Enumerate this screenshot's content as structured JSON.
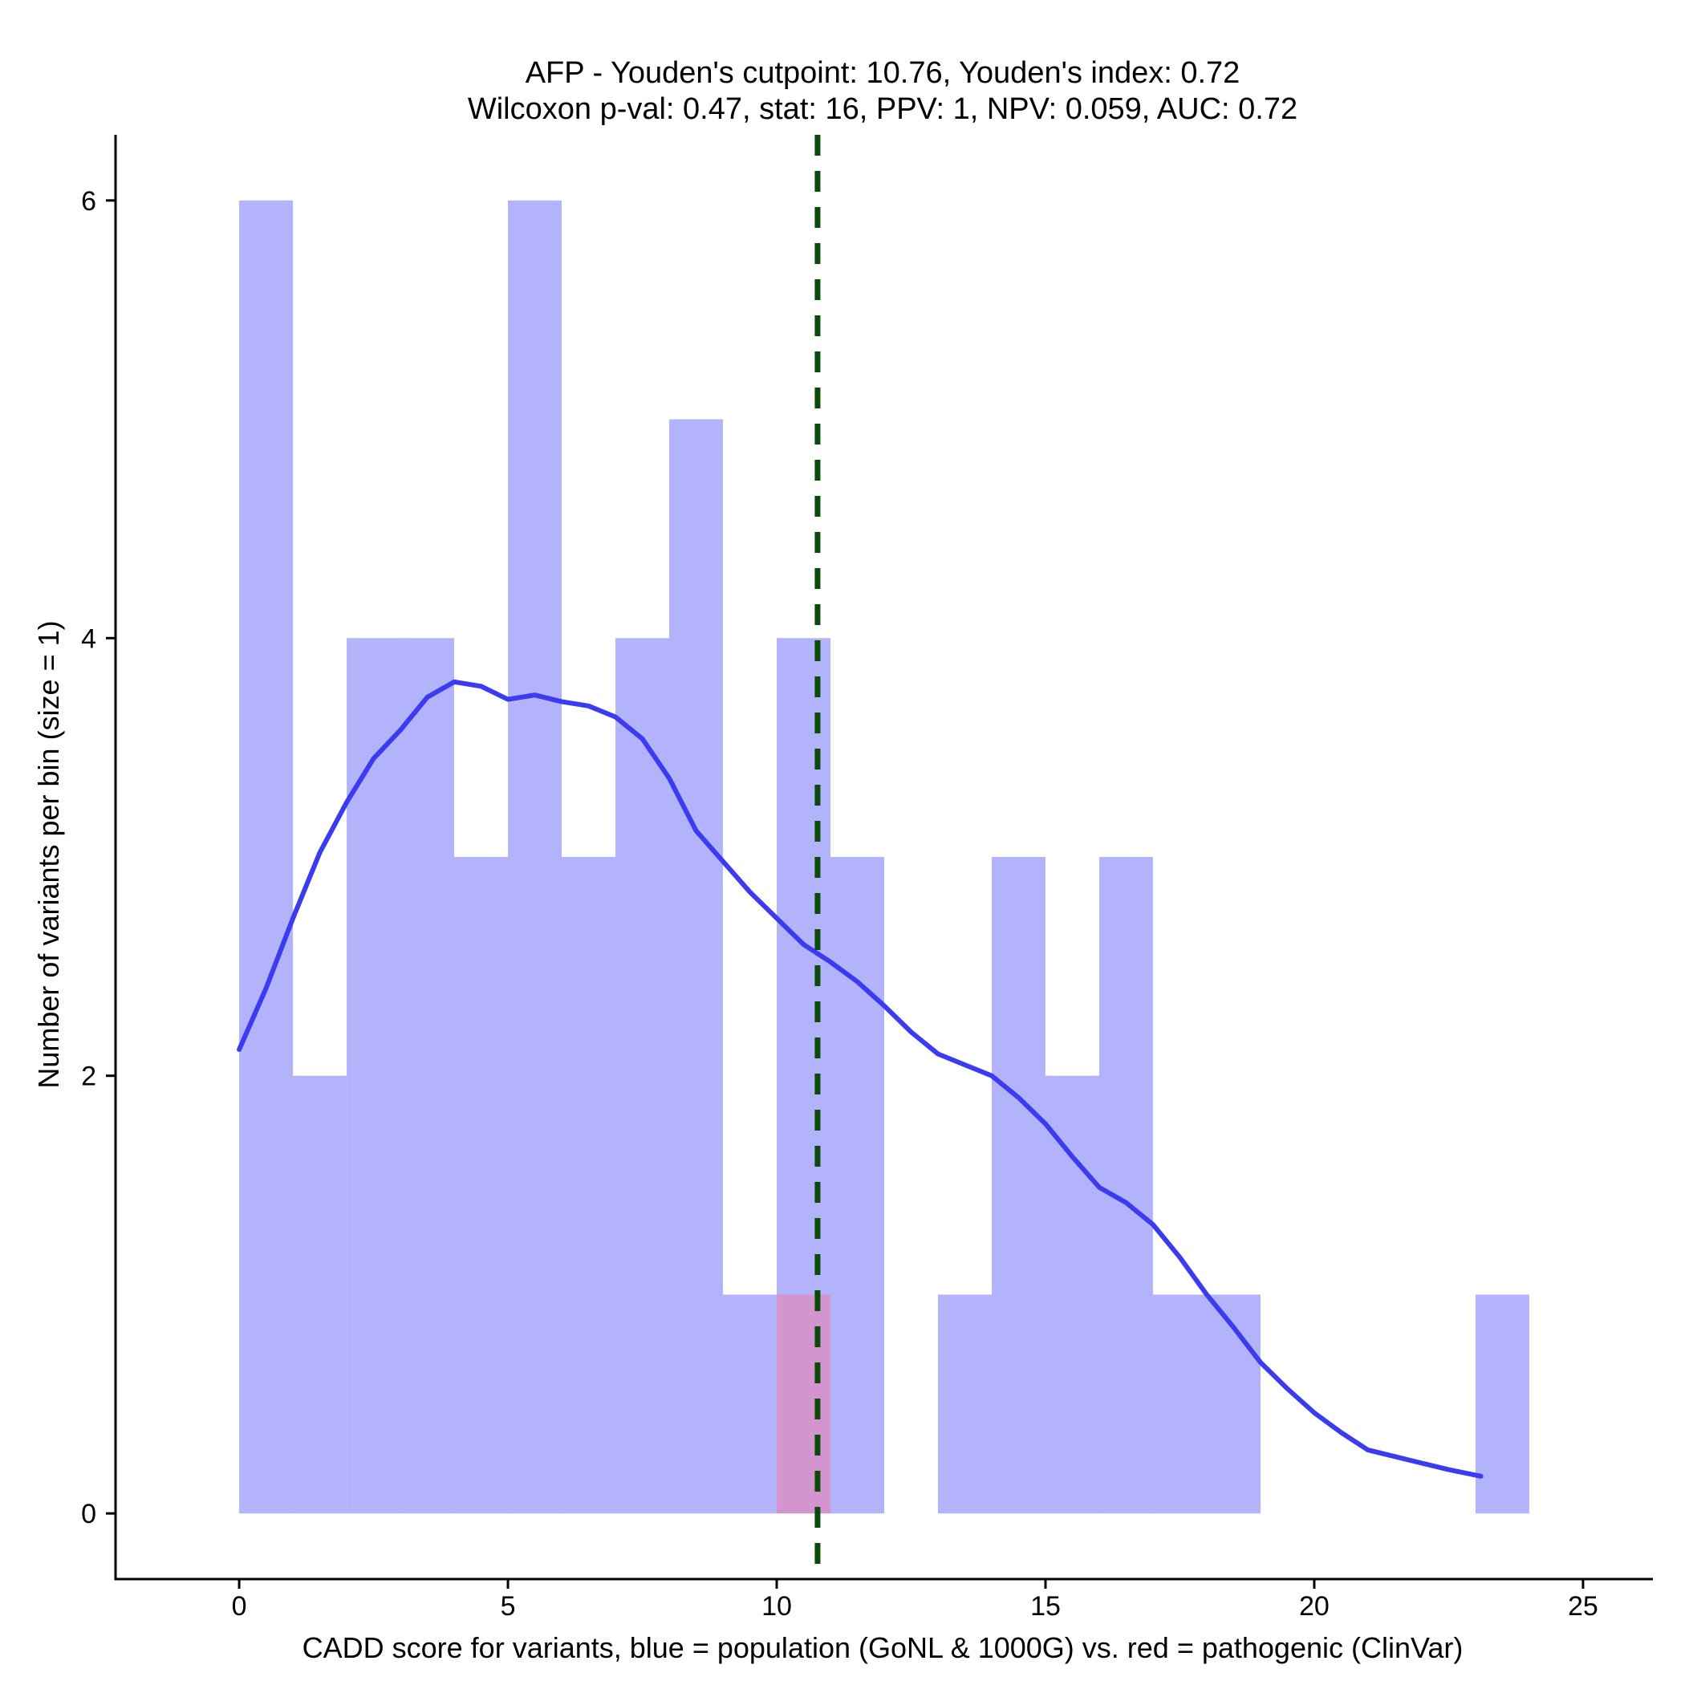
{
  "chart_data": {
    "type": "bar",
    "title_line1": "AFP - Youden's cutpoint: 10.76, Youden's index: 0.72",
    "title_line2": "Wilcoxon p-val: 0.47, stat: 16, PPV: 1, NPV: 0.059, AUC: 0.72",
    "xlabel": "CADD score for variants, blue = population (GoNL & 1000G) vs. red = pathogenic (ClinVar)",
    "ylabel": "Number of variants per bin (size = 1)",
    "xlim": [
      -2.3,
      26.3
    ],
    "ylim": [
      -0.3,
      6.3
    ],
    "x_ticks": [
      0,
      5,
      10,
      15,
      20,
      25
    ],
    "y_ticks": [
      0,
      2,
      4,
      6
    ],
    "bin_width": 1,
    "series": [
      {
        "name": "population",
        "color": "#b3b3fb",
        "bins": [
          {
            "start": 0,
            "count": 6
          },
          {
            "start": 1,
            "count": 2
          },
          {
            "start": 2,
            "count": 4
          },
          {
            "start": 3,
            "count": 4
          },
          {
            "start": 4,
            "count": 3
          },
          {
            "start": 5,
            "count": 6
          },
          {
            "start": 6,
            "count": 3
          },
          {
            "start": 7,
            "count": 4
          },
          {
            "start": 8,
            "count": 5
          },
          {
            "start": 9,
            "count": 1
          },
          {
            "start": 10,
            "count": 4
          },
          {
            "start": 11,
            "count": 3
          },
          {
            "start": 13,
            "count": 1
          },
          {
            "start": 14,
            "count": 3
          },
          {
            "start": 15,
            "count": 2
          },
          {
            "start": 16,
            "count": 3
          },
          {
            "start": 17,
            "count": 1
          },
          {
            "start": 18,
            "count": 1
          },
          {
            "start": 23,
            "count": 1
          }
        ]
      },
      {
        "name": "pathogenic",
        "color": "#d98fc6",
        "bins": [
          {
            "start": 10,
            "count": 1
          }
        ]
      }
    ],
    "density_curve": {
      "color": "#3b3bf0",
      "x": [
        0.0,
        0.5,
        1.0,
        1.5,
        2.0,
        2.5,
        3.0,
        3.5,
        4.0,
        4.5,
        5.0,
        5.5,
        6.0,
        6.5,
        7.0,
        7.5,
        8.0,
        8.5,
        9.0,
        9.5,
        10.0,
        10.5,
        11.0,
        11.5,
        12.0,
        12.5,
        13.0,
        13.5,
        14.0,
        14.5,
        15.0,
        15.5,
        16.0,
        16.5,
        17.0,
        17.5,
        18.0,
        18.5,
        19.0,
        19.5,
        20.0,
        20.5,
        21.0,
        21.5,
        22.0,
        22.5,
        23.1
      ],
      "y": [
        2.12,
        2.4,
        2.72,
        3.02,
        3.25,
        3.45,
        3.58,
        3.73,
        3.8,
        3.78,
        3.72,
        3.74,
        3.71,
        3.69,
        3.64,
        3.54,
        3.36,
        3.12,
        2.98,
        2.84,
        2.72,
        2.6,
        2.52,
        2.43,
        2.32,
        2.2,
        2.1,
        2.05,
        2.0,
        1.9,
        1.78,
        1.63,
        1.49,
        1.42,
        1.32,
        1.17,
        1.0,
        0.85,
        0.69,
        0.57,
        0.46,
        0.37,
        0.29,
        0.26,
        0.23,
        0.2,
        0.17
      ]
    },
    "cutpoint": {
      "x": 10.76,
      "color": "#0b4a0b",
      "style": "dashed"
    },
    "grid": false,
    "legend": "none"
  }
}
